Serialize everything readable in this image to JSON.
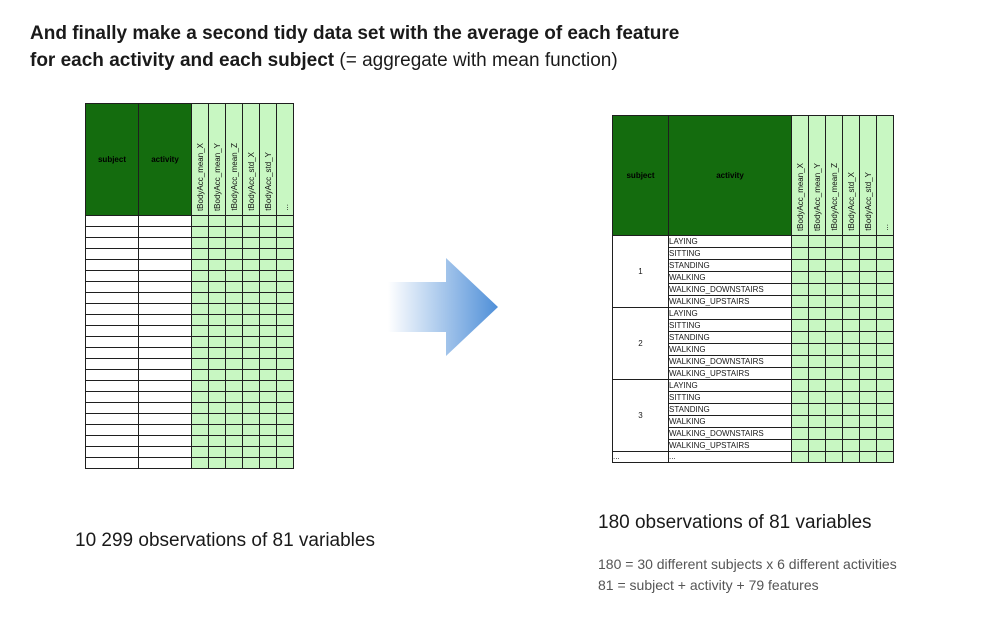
{
  "title": {
    "line1": "And finally make a second tidy data set with the average of each feature",
    "line2_bold": "for each activity and each subject",
    "line2_normal": " (= aggregate with mean function)"
  },
  "left_table": {
    "headers": [
      "subject",
      "activity"
    ],
    "features": [
      "tBodyAcc_mean_X",
      "tBodyAcc_mean_Y",
      "tBodyAcc_mean_Z",
      "tBodyAcc_std_X",
      "tBodyAcc_std_Y",
      "..."
    ],
    "caption": "10 299 observations of 81 variables"
  },
  "right_table": {
    "headers": [
      "subject",
      "activity"
    ],
    "features": [
      "tBodyAcc_mean_X",
      "tBodyAcc_mean_Y",
      "tBodyAcc_mean_Z",
      "tBodyAcc_std_X",
      "tBodyAcc_std_Y",
      "..."
    ],
    "groups": [
      {
        "subject": "1",
        "activities": [
          "LAYING",
          "SITTING",
          "STANDING",
          "WALKING",
          "WALKING_DOWNSTAIRS",
          "WALKING_UPSTAIRS"
        ]
      },
      {
        "subject": "2",
        "activities": [
          "LAYING",
          "SITTING",
          "STANDING",
          "WALKING",
          "WALKING_DOWNSTAIRS",
          "WALKING_UPSTAIRS"
        ]
      },
      {
        "subject": "3",
        "activities": [
          "LAYING",
          "SITTING",
          "STANDING",
          "WALKING",
          "WALKING_DOWNSTAIRS",
          "WALKING_UPSTAIRS"
        ]
      }
    ],
    "ellipsis": [
      "...",
      "..."
    ],
    "caption": "180 observations of 81 variables",
    "notes": [
      "180 = 30 different subjects x 6 different activities",
      "81 = subject + activity + 79 features"
    ]
  },
  "colors": {
    "header_green": "#146c0e",
    "feature_green": "#c8f7c2",
    "arrow_blue": "#4f8fd8"
  },
  "icons": {
    "arrow": "right-arrow-icon"
  }
}
